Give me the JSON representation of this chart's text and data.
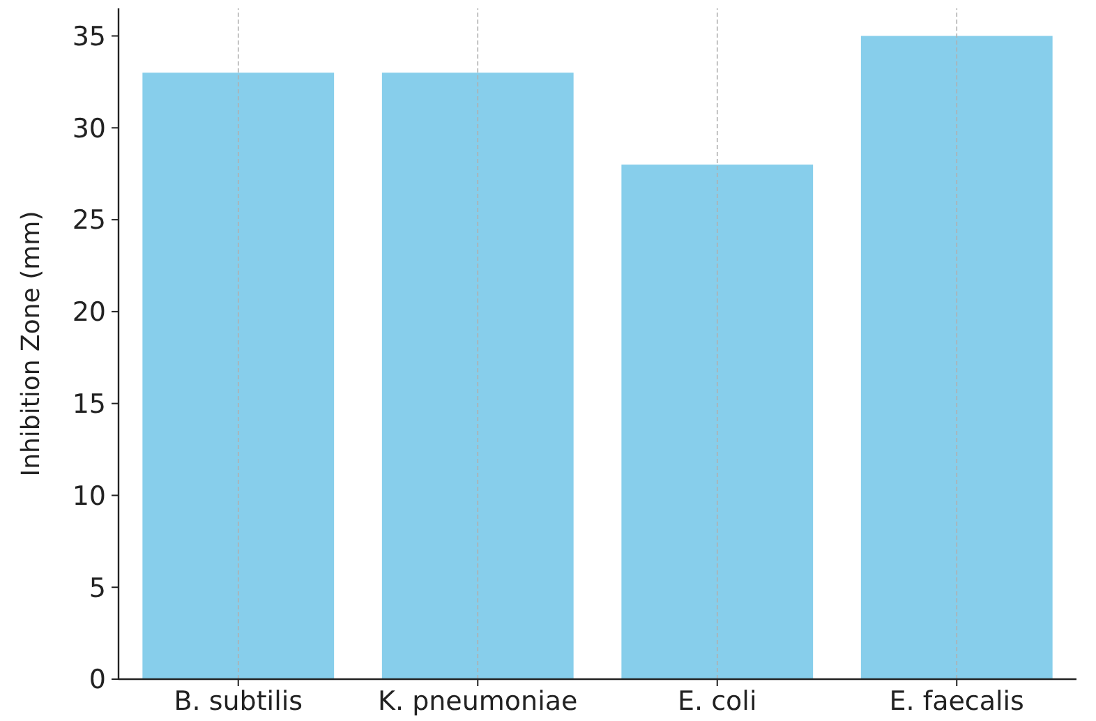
{
  "chart_data": {
    "type": "bar",
    "ylabel": "Inhibition Zone (mm)",
    "categories": [
      "B. subtilis",
      "K. pneumoniae",
      "E. coli",
      "E. faecalis"
    ],
    "values": [
      33,
      33,
      28,
      35
    ],
    "color": "#87ceeb",
    "ylim": [
      0,
      36.5
    ],
    "yticks": [
      0,
      5,
      10,
      15,
      20,
      25,
      30,
      35
    ],
    "grid": "x"
  }
}
